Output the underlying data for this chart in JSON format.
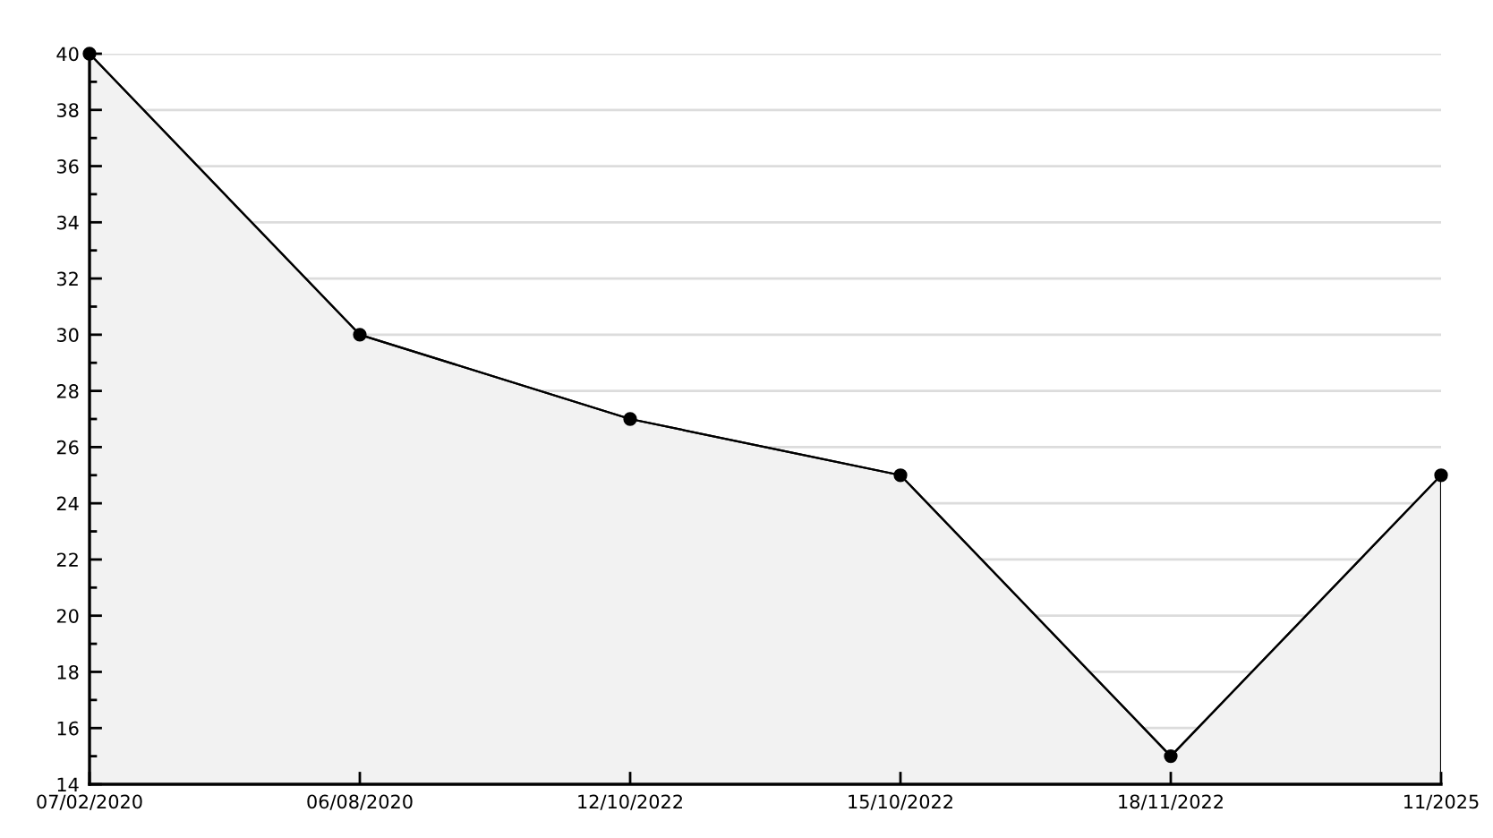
{
  "chart_data": {
    "type": "area",
    "categories": [
      "07/02/2020",
      "06/08/2020",
      "12/10/2022",
      "15/10/2022",
      "18/11/2022",
      "11/2025"
    ],
    "values": [
      40,
      30,
      27,
      25,
      15,
      25
    ],
    "color": "#f2f2f2",
    "ylim": [
      14,
      40
    ],
    "yticks": [
      14,
      {
        "value": 15,
        "label": null
      },
      16,
      {
        "value": 17,
        "label": null
      },
      18,
      {
        "value": 19,
        "label": null
      },
      20,
      {
        "value": 21,
        "label": null
      },
      22,
      {
        "value": 23,
        "label": null
      },
      24,
      {
        "value": 25,
        "label": null
      },
      26,
      {
        "value": 27,
        "label": null
      },
      28,
      {
        "value": 29,
        "label": null
      },
      30,
      {
        "value": 31,
        "label": null
      },
      32,
      {
        "value": 33,
        "label": null
      },
      34,
      {
        "value": 35,
        "label": null
      },
      36,
      {
        "value": 37,
        "label": null
      },
      38,
      {
        "value": 39,
        "label": null
      },
      40
    ],
    "grid": "y",
    "marker": "circle"
  }
}
